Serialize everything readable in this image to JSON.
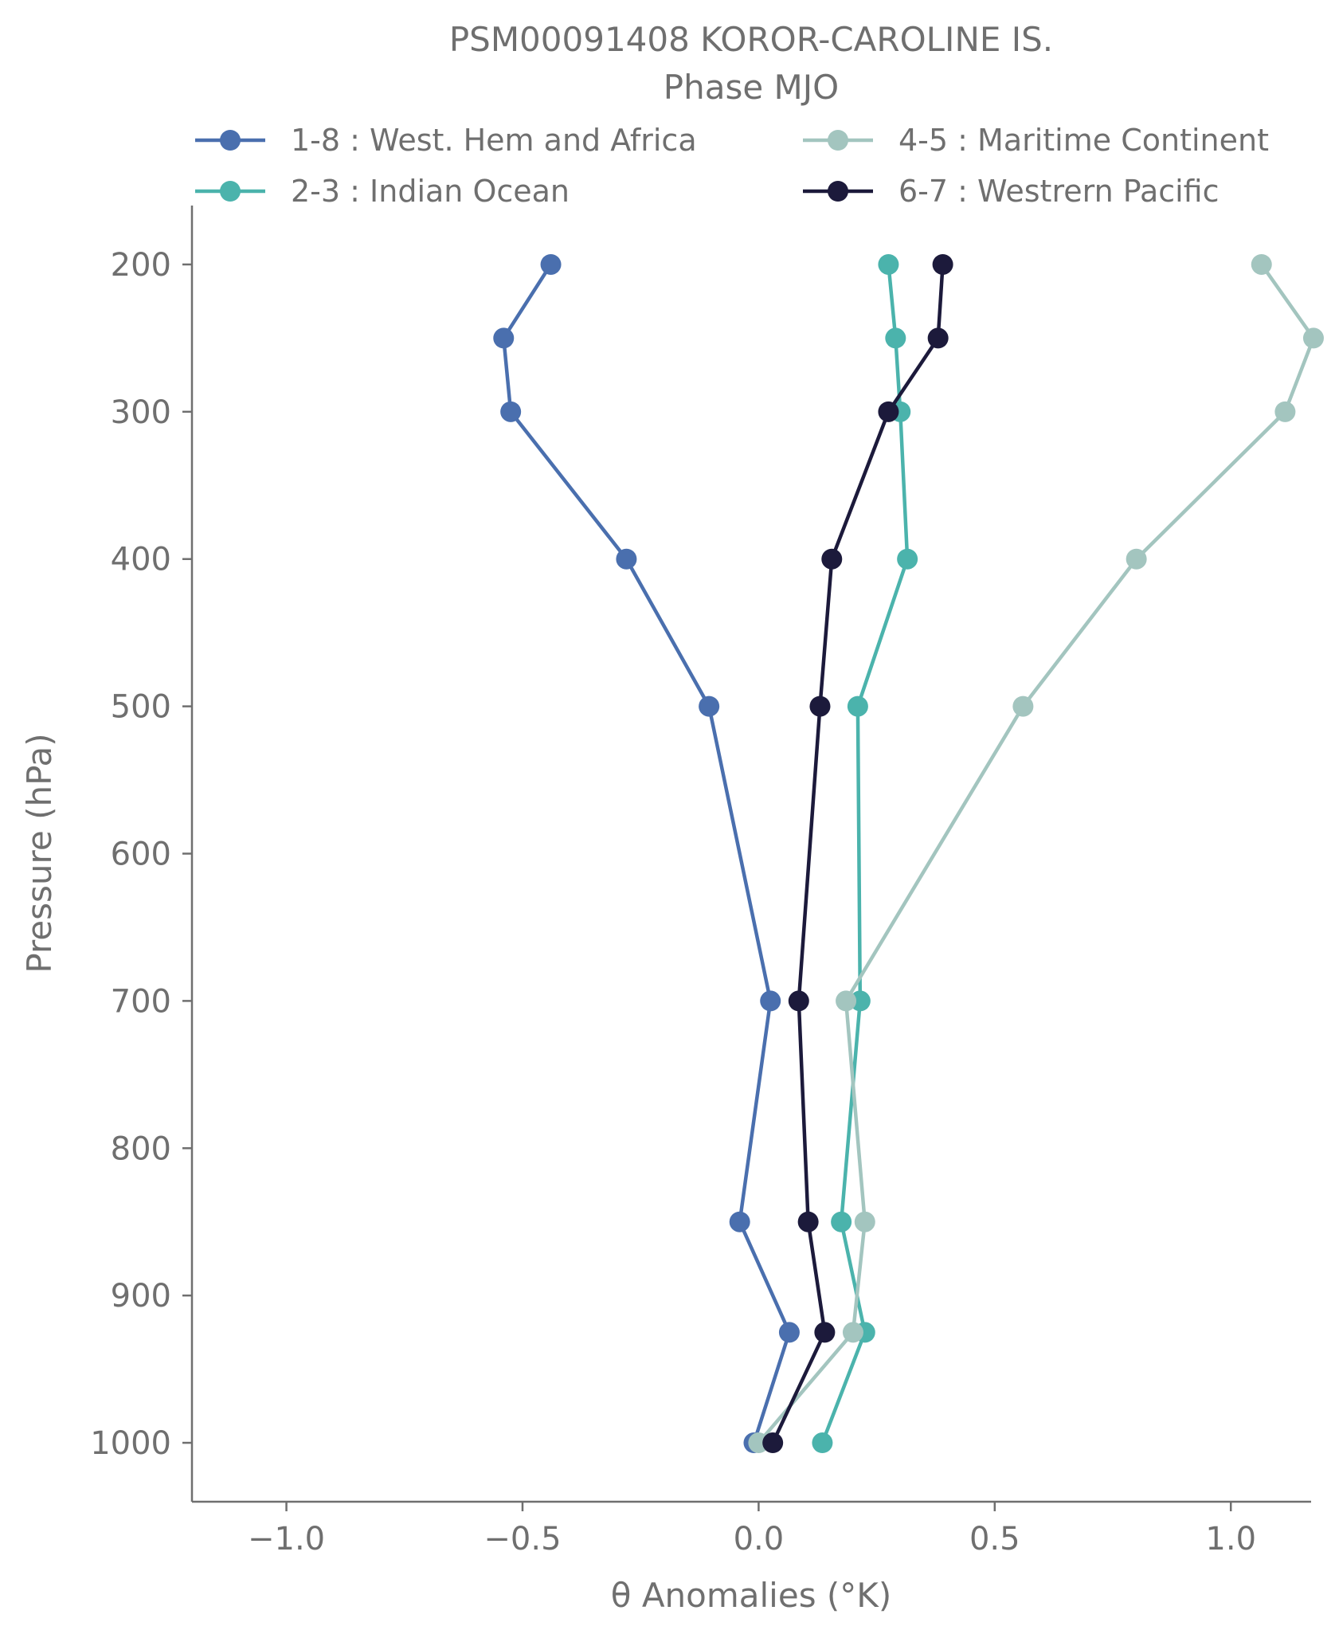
{
  "chart_data": {
    "type": "line",
    "title_line1": "PSM00091408 KOROR-CAROLINE IS.",
    "title_line2": "Phase MJO",
    "xlabel": "θ Anomalies (°K)",
    "ylabel": "Pressure (hPa)",
    "xlim": [
      -1.2,
      1.17
    ],
    "ylim": [
      1040,
      160
    ],
    "y_inverted": true,
    "xticks": [
      -1.0,
      -0.5,
      0.0,
      0.5,
      1.0
    ],
    "xtick_labels": [
      "−1.0",
      "−0.5",
      "0.0",
      "0.5",
      "1.0"
    ],
    "yticks": [
      200,
      300,
      400,
      500,
      600,
      700,
      800,
      900,
      1000
    ],
    "ytick_labels": [
      "200",
      "300",
      "400",
      "500",
      "600",
      "700",
      "800",
      "900",
      "1000"
    ],
    "grid": false,
    "legend_placement": "top, two columns above plot",
    "pressure": [
      200,
      250,
      300,
      400,
      500,
      700,
      850,
      925,
      1000
    ],
    "series": [
      {
        "name": "1-8 : West. Hem and Africa",
        "color": "#4a6fae",
        "values": [
          -0.44,
          -0.54,
          -0.525,
          -0.28,
          -0.105,
          0.025,
          -0.04,
          0.065,
          -0.01
        ]
      },
      {
        "name": "2-3 : Indian Ocean",
        "color": "#4bb3ac",
        "values": [
          0.275,
          0.29,
          0.3,
          0.315,
          0.21,
          0.215,
          0.175,
          0.225,
          0.135
        ]
      },
      {
        "name": "4-5 : Maritime Continent",
        "color": "#a3c5bf",
        "values": [
          1.065,
          1.175,
          1.115,
          0.8,
          0.56,
          0.185,
          0.225,
          0.2,
          0.0
        ]
      },
      {
        "name": "6-7 : Westrern Pacific",
        "color": "#1c1a3b",
        "values": [
          0.39,
          0.38,
          0.275,
          0.155,
          0.13,
          0.085,
          0.105,
          0.14,
          0.03
        ]
      }
    ]
  }
}
